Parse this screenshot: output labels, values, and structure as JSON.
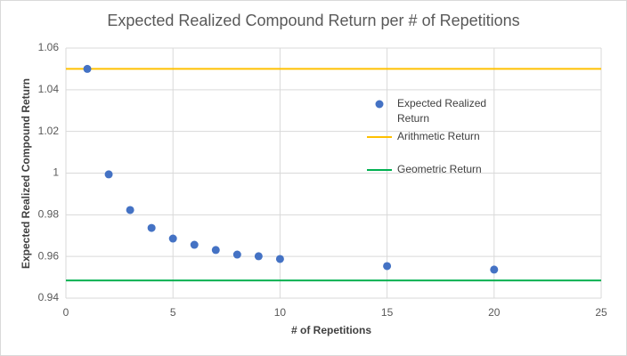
{
  "chart_data": {
    "type": "scatter",
    "title": "Expected Realized Compound Return per # of Repetitions",
    "x_label": "# of Repetitions",
    "y_label": "Expected  Realized Compound Return",
    "xlim": [
      0,
      25
    ],
    "xticks": [
      0,
      5,
      10,
      15,
      20,
      25
    ],
    "ylim": [
      0.94,
      1.06
    ],
    "yticks": [
      0.94,
      0.96,
      0.98,
      1,
      1.02,
      1.04,
      1.06
    ],
    "grid": true,
    "legend": "right",
    "series": [
      {
        "name": "Expected Realized Return",
        "color": "#4472c4",
        "style": "markers",
        "x": [
          1,
          2,
          3,
          4,
          5,
          6,
          7,
          8,
          9,
          10,
          15,
          20
        ],
        "values": [
          1.05,
          0.9994,
          0.9823,
          0.9737,
          0.9686,
          0.9656,
          0.9631,
          0.9609,
          0.9601,
          0.9588,
          0.9554,
          0.9537
        ]
      },
      {
        "name": "Arithmetic Return",
        "color": "#ffc000",
        "style": "line",
        "x": [
          0,
          25
        ],
        "values": [
          1.05,
          1.05
        ]
      },
      {
        "name": "Geometric Return",
        "color": "#00b050",
        "style": "line",
        "x": [
          0,
          25
        ],
        "values": [
          0.9485,
          0.9485
        ]
      }
    ]
  }
}
